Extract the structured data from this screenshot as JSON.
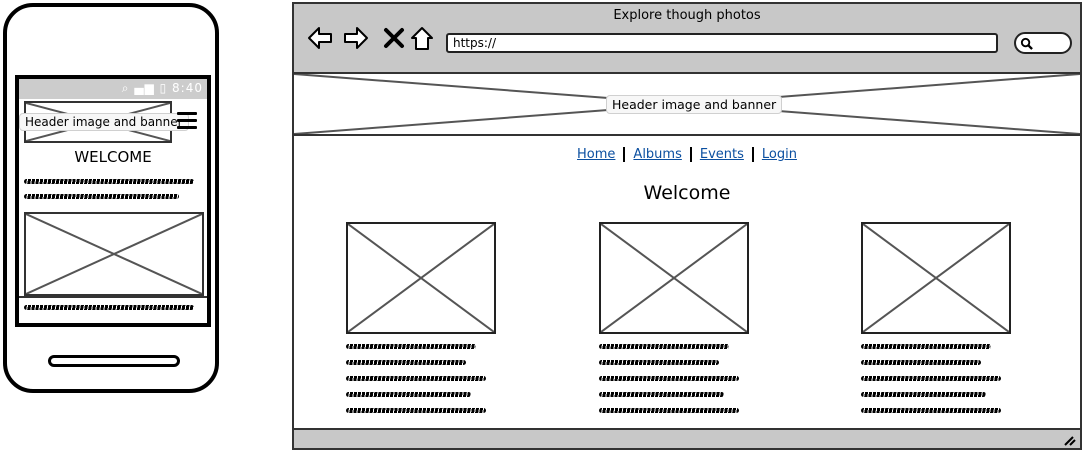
{
  "phone": {
    "status": {
      "time": "8:40",
      "icons": [
        "wifi-icon",
        "signal-icon",
        "battery-icon"
      ]
    },
    "header_label": "Header image and banner",
    "welcome": "WELCOME"
  },
  "browser": {
    "title": "Explore though photos",
    "url": "https://",
    "nav_buttons": [
      "back-icon",
      "forward-icon",
      "close-icon",
      "home-icon"
    ],
    "header_label": "Header image and banner",
    "nav": [
      {
        "label": "Home"
      },
      {
        "label": "Albums"
      },
      {
        "label": "Events"
      },
      {
        "label": "Login"
      }
    ],
    "welcome": "Welcome"
  },
  "colors": {
    "chrome": "#c8c8c8",
    "link": "#0b4fa0",
    "stroke": "#333333"
  }
}
